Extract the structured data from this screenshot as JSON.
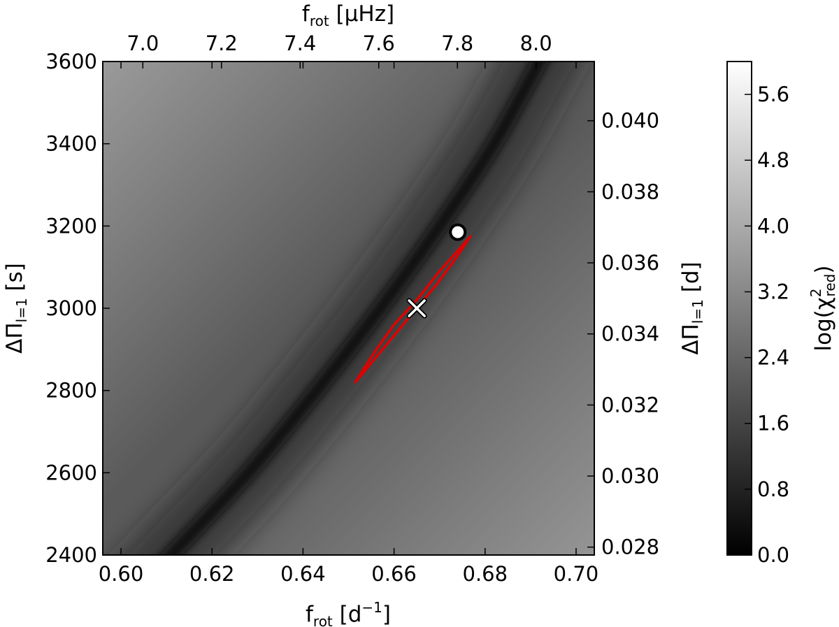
{
  "chart_data": {
    "type": "heatmap",
    "bottom_axis": {
      "label_main": "f",
      "label_sub": "rot",
      "label_tail": "[d",
      "label_sup": "−1",
      "label_close": "]",
      "range": [
        0.596,
        0.704
      ],
      "ticks": [
        0.6,
        0.62,
        0.64,
        0.66,
        0.68,
        0.7
      ],
      "tick_labels": [
        "0.60",
        "0.62",
        "0.64",
        "0.66",
        "0.68",
        "0.70"
      ]
    },
    "top_axis": {
      "label_main": "f",
      "label_sub": "rot",
      "label_tail": "[μHz]",
      "ticks": [
        7.0,
        7.2,
        7.4,
        7.6,
        7.8,
        8.0
      ],
      "tick_labels": [
        "7.0",
        "7.2",
        "7.4",
        "7.6",
        "7.8",
        "8.0"
      ]
    },
    "left_axis": {
      "label_main": "ΔΠ",
      "label_sub": "l=1",
      "label_tail": "[s]",
      "range": [
        2400,
        3600
      ],
      "ticks": [
        2400,
        2600,
        2800,
        3000,
        3200,
        3400,
        3600
      ],
      "tick_labels": [
        "2400",
        "2600",
        "2800",
        "3000",
        "3200",
        "3400",
        "3600"
      ]
    },
    "right_axis": {
      "label_main": "ΔΠ",
      "label_sub": "l=1",
      "label_tail": "[d]",
      "ticks": [
        0.028,
        0.03,
        0.032,
        0.034,
        0.036,
        0.038,
        0.04
      ],
      "tick_labels": [
        "0.028",
        "0.030",
        "0.032",
        "0.034",
        "0.036",
        "0.038",
        "0.040"
      ]
    },
    "colorbar": {
      "label_main": "log(χ",
      "label_sup": "2",
      "label_sub": "red",
      "label_close": ")",
      "range": [
        0.0,
        6.0
      ],
      "ticks": [
        0.0,
        0.8,
        1.6,
        2.4,
        3.2,
        4.0,
        4.8,
        5.6
      ],
      "tick_labels": [
        "0.0",
        "0.8",
        "1.6",
        "2.4",
        "3.2",
        "4.0",
        "4.8",
        "5.6"
      ],
      "colormap": "grayscale (black to white)"
    },
    "valley_curve": [
      [
        0.611,
        2400
      ],
      [
        0.628,
        2600
      ],
      [
        0.643,
        2800
      ],
      [
        0.657,
        3000
      ],
      [
        0.67,
        3200
      ],
      [
        0.682,
        3400
      ],
      [
        0.692,
        3600
      ]
    ],
    "best_fit_marker": {
      "shape": "x",
      "f_rot": 0.665,
      "delta_pi": 3000,
      "color": "#ffffff"
    },
    "circle_marker": {
      "shape": "circle",
      "f_rot": 0.674,
      "delta_pi": 3185,
      "color": "#ffffff"
    },
    "confidence_contour": {
      "color": "#e00000",
      "points": [
        [
          0.6515,
          2820
        ],
        [
          0.656,
          2880
        ],
        [
          0.6605,
          2940
        ],
        [
          0.665,
          3000
        ],
        [
          0.6695,
          3060
        ],
        [
          0.6735,
          3120
        ],
        [
          0.6768,
          3175
        ],
        [
          0.674,
          3140
        ],
        [
          0.67,
          3090
        ],
        [
          0.665,
          3020
        ],
        [
          0.66,
          2960
        ],
        [
          0.6555,
          2890
        ],
        [
          0.6515,
          2820
        ]
      ]
    }
  }
}
